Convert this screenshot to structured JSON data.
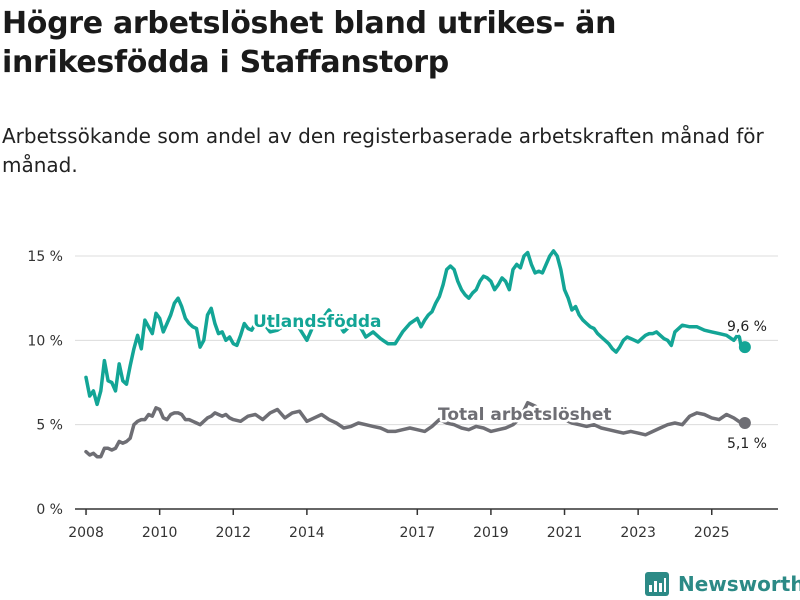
{
  "title": "Högre arbetslöshet bland utrikes- än inrikesfödda i Staffanstorp",
  "subtitle": "Arbetssökande som andel av den registerbaserade arbetskraften månad för månad.",
  "brand": {
    "name": "Newsworthy",
    "icon": "bar-chart-icon"
  },
  "colors": {
    "foreign": "#13a596",
    "total": "#6e6e74",
    "grid": "#dcdcdc",
    "axis": "#333333"
  },
  "chart_data": {
    "type": "line",
    "title": "Högre arbetslöshet bland utrikes- än inrikesfödda i Staffanstorp",
    "subtitle": "Arbetssökande som andel av den registerbaserade arbetskraften månad för månad.",
    "xlabel": "",
    "ylabel": "",
    "xlim": [
      2007.7,
      2026.8
    ],
    "ylim": [
      0,
      15
    ],
    "y_ticks": [
      {
        "value": 0,
        "label": "0 %"
      },
      {
        "value": 5,
        "label": "5 %"
      },
      {
        "value": 10,
        "label": "10 %"
      },
      {
        "value": 15,
        "label": "15 %"
      }
    ],
    "x_ticks": [
      {
        "value": 2008,
        "label": "2008"
      },
      {
        "value": 2010,
        "label": "2010"
      },
      {
        "value": 2012,
        "label": "2012"
      },
      {
        "value": 2014,
        "label": "2014"
      },
      {
        "value": 2017,
        "label": "2017"
      },
      {
        "value": 2019,
        "label": "2019"
      },
      {
        "value": 2021,
        "label": "2021"
      },
      {
        "value": 2023,
        "label": "2023"
      },
      {
        "value": 2025,
        "label": "2025"
      }
    ],
    "grid": true,
    "series": [
      {
        "name": "Utlandsfödda",
        "color": "#13a596",
        "end_label": "9,6 %",
        "x": [
          2008.0,
          2008.1,
          2008.2,
          2008.3,
          2008.4,
          2008.5,
          2008.6,
          2008.7,
          2008.8,
          2008.9,
          2009.0,
          2009.1,
          2009.2,
          2009.3,
          2009.4,
          2009.5,
          2009.6,
          2009.7,
          2009.8,
          2009.9,
          2010.0,
          2010.1,
          2010.2,
          2010.3,
          2010.4,
          2010.5,
          2010.6,
          2010.7,
          2010.8,
          2010.9,
          2011.0,
          2011.1,
          2011.2,
          2011.3,
          2011.4,
          2011.5,
          2011.6,
          2011.7,
          2011.8,
          2011.9,
          2012.0,
          2012.1,
          2012.2,
          2012.3,
          2012.4,
          2012.5,
          2012.6,
          2012.7,
          2012.8,
          2012.9,
          2013.0,
          2013.2,
          2013.4,
          2013.6,
          2013.8,
          2014.0,
          2014.2,
          2014.4,
          2014.6,
          2014.8,
          2015.0,
          2015.2,
          2015.4,
          2015.6,
          2015.8,
          2016.0,
          2016.2,
          2016.4,
          2016.6,
          2016.8,
          2017.0,
          2017.1,
          2017.2,
          2017.3,
          2017.4,
          2017.5,
          2017.6,
          2017.7,
          2017.8,
          2017.9,
          2018.0,
          2018.1,
          2018.2,
          2018.3,
          2018.4,
          2018.5,
          2018.6,
          2018.7,
          2018.8,
          2018.9,
          2019.0,
          2019.1,
          2019.2,
          2019.3,
          2019.4,
          2019.5,
          2019.6,
          2019.7,
          2019.8,
          2019.9,
          2020.0,
          2020.1,
          2020.2,
          2020.3,
          2020.4,
          2020.5,
          2020.6,
          2020.7,
          2020.8,
          2020.9,
          2021.0,
          2021.1,
          2021.2,
          2021.3,
          2021.4,
          2021.5,
          2021.6,
          2021.7,
          2021.8,
          2021.9,
          2022.0,
          2022.1,
          2022.2,
          2022.3,
          2022.4,
          2022.5,
          2022.6,
          2022.7,
          2022.8,
          2022.9,
          2023.0,
          2023.1,
          2023.2,
          2023.3,
          2023.4,
          2023.5,
          2023.6,
          2023.7,
          2023.8,
          2023.9,
          2024.0,
          2024.2,
          2024.4,
          2024.6,
          2024.8,
          2025.0,
          2025.2,
          2025.4,
          2025.6,
          2025.7,
          2025.75,
          2025.8,
          2025.9
        ],
        "y": [
          7.8,
          6.7,
          7.0,
          6.2,
          7.0,
          8.8,
          7.6,
          7.5,
          7.0,
          8.6,
          7.6,
          7.4,
          8.5,
          9.5,
          10.3,
          9.5,
          11.2,
          10.8,
          10.4,
          11.6,
          11.3,
          10.5,
          11.0,
          11.5,
          12.2,
          12.5,
          12.0,
          11.3,
          11.0,
          10.8,
          10.7,
          9.6,
          10.0,
          11.5,
          11.9,
          11.0,
          10.4,
          10.5,
          10.0,
          10.2,
          9.8,
          9.7,
          10.3,
          11.0,
          10.7,
          10.6,
          11.0,
          11.2,
          11.4,
          10.8,
          10.5,
          10.6,
          10.9,
          11.1,
          10.7,
          10.0,
          11.0,
          11.2,
          11.8,
          11.2,
          10.5,
          10.9,
          11.0,
          10.2,
          10.5,
          10.1,
          9.8,
          9.8,
          10.5,
          11.0,
          11.3,
          10.8,
          11.2,
          11.5,
          11.7,
          12.2,
          12.6,
          13.3,
          14.2,
          14.4,
          14.2,
          13.5,
          13.0,
          12.7,
          12.5,
          12.8,
          13.0,
          13.5,
          13.8,
          13.7,
          13.5,
          13.0,
          13.3,
          13.7,
          13.5,
          13.0,
          14.2,
          14.5,
          14.3,
          15.0,
          15.2,
          14.5,
          14.0,
          14.1,
          14.0,
          14.5,
          15.0,
          15.3,
          15.0,
          14.2,
          13.0,
          12.5,
          11.8,
          12.0,
          11.5,
          11.2,
          11.0,
          10.8,
          10.7,
          10.4,
          10.2,
          10.0,
          9.8,
          9.5,
          9.3,
          9.6,
          10.0,
          10.2,
          10.1,
          10.0,
          9.9,
          10.1,
          10.3,
          10.4,
          10.4,
          10.5,
          10.3,
          10.1,
          10.0,
          9.7,
          10.5,
          10.9,
          10.8,
          10.8,
          10.6,
          10.5,
          10.4,
          10.3,
          10.0,
          10.3,
          10.2,
          9.6,
          9.6
        ]
      },
      {
        "name": "Total arbetslöshet",
        "color": "#6e6e74",
        "end_label": "5,1 %",
        "x": [
          2008.0,
          2008.1,
          2008.2,
          2008.3,
          2008.4,
          2008.5,
          2008.6,
          2008.7,
          2008.8,
          2008.9,
          2009.0,
          2009.1,
          2009.2,
          2009.3,
          2009.4,
          2009.5,
          2009.6,
          2009.7,
          2009.8,
          2009.9,
          2010.0,
          2010.1,
          2010.2,
          2010.3,
          2010.4,
          2010.5,
          2010.6,
          2010.7,
          2010.8,
          2010.9,
          2011.0,
          2011.1,
          2011.2,
          2011.3,
          2011.4,
          2011.5,
          2011.6,
          2011.7,
          2011.8,
          2011.9,
          2012.0,
          2012.2,
          2012.4,
          2012.6,
          2012.8,
          2013.0,
          2013.2,
          2013.4,
          2013.6,
          2013.8,
          2014.0,
          2014.2,
          2014.4,
          2014.6,
          2014.8,
          2015.0,
          2015.2,
          2015.4,
          2015.6,
          2015.8,
          2016.0,
          2016.2,
          2016.4,
          2016.6,
          2016.8,
          2017.0,
          2017.2,
          2017.4,
          2017.6,
          2017.8,
          2018.0,
          2018.2,
          2018.4,
          2018.6,
          2018.8,
          2019.0,
          2019.2,
          2019.4,
          2019.6,
          2019.8,
          2020.0,
          2020.2,
          2020.4,
          2020.6,
          2020.8,
          2021.0,
          2021.2,
          2021.4,
          2021.6,
          2021.8,
          2022.0,
          2022.2,
          2022.4,
          2022.6,
          2022.8,
          2023.0,
          2023.2,
          2023.4,
          2023.6,
          2023.8,
          2024.0,
          2024.2,
          2024.4,
          2024.6,
          2024.8,
          2025.0,
          2025.2,
          2025.4,
          2025.6,
          2025.8,
          2025.9
        ],
        "y": [
          3.4,
          3.2,
          3.3,
          3.1,
          3.1,
          3.6,
          3.6,
          3.5,
          3.6,
          4.0,
          3.9,
          4.0,
          4.2,
          5.0,
          5.2,
          5.3,
          5.3,
          5.6,
          5.5,
          6.0,
          5.9,
          5.4,
          5.3,
          5.6,
          5.7,
          5.7,
          5.6,
          5.3,
          5.3,
          5.2,
          5.1,
          5.0,
          5.2,
          5.4,
          5.5,
          5.7,
          5.6,
          5.5,
          5.6,
          5.4,
          5.3,
          5.2,
          5.5,
          5.6,
          5.3,
          5.7,
          5.9,
          5.4,
          5.7,
          5.8,
          5.2,
          5.4,
          5.6,
          5.3,
          5.1,
          4.8,
          4.9,
          5.1,
          5.0,
          4.9,
          4.8,
          4.6,
          4.6,
          4.7,
          4.8,
          4.7,
          4.6,
          4.9,
          5.3,
          5.1,
          5.0,
          4.8,
          4.7,
          4.9,
          4.8,
          4.6,
          4.7,
          4.8,
          5.0,
          5.4,
          6.3,
          6.1,
          5.8,
          5.6,
          5.5,
          5.3,
          5.1,
          5.0,
          4.9,
          5.0,
          4.8,
          4.7,
          4.6,
          4.5,
          4.6,
          4.5,
          4.4,
          4.6,
          4.8,
          5.0,
          5.1,
          5.0,
          5.5,
          5.7,
          5.6,
          5.4,
          5.3,
          5.6,
          5.4,
          5.1,
          5.1
        ]
      }
    ]
  }
}
